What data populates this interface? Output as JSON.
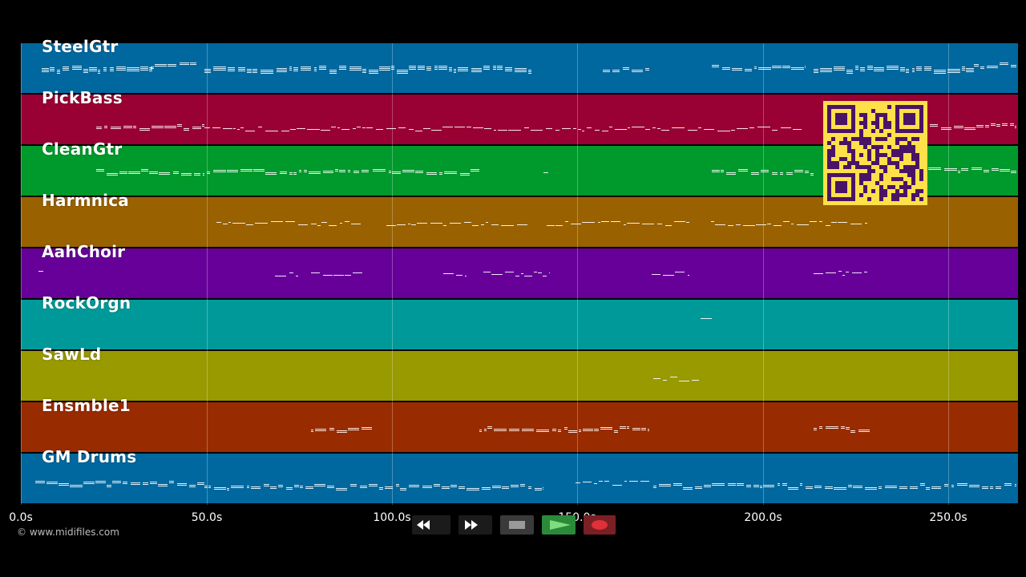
{
  "tracks": [
    {
      "name": "SteelGtr",
      "color": "#00689e"
    },
    {
      "name": "PickBass",
      "color": "#990033"
    },
    {
      "name": "CleanGtr",
      "color": "#00992b"
    },
    {
      "name": "Harmnica",
      "color": "#996100"
    },
    {
      "name": "AahChoir",
      "color": "#660099"
    },
    {
      "name": "RockOrgn",
      "color": "#009999"
    },
    {
      "name": "SawLd",
      "color": "#999900"
    },
    {
      "name": "Ensmble1",
      "color": "#992b00"
    },
    {
      "name": "GM Drums",
      "color": "#00689e"
    }
  ],
  "timeline": {
    "ticks": [
      "0.0s",
      "50.0s",
      "100.0s",
      "150.0s",
      "200.0s",
      "250.0s"
    ]
  },
  "copyright": "© www.midifiles.com",
  "transport": {
    "rewind": "rewind-icon",
    "fast_forward": "fast-forward-icon",
    "stop": "stop-icon",
    "play": "play-icon",
    "record": "record-icon"
  },
  "qr_code": {
    "color": "#ffe04a",
    "dark": "#4a1466"
  }
}
